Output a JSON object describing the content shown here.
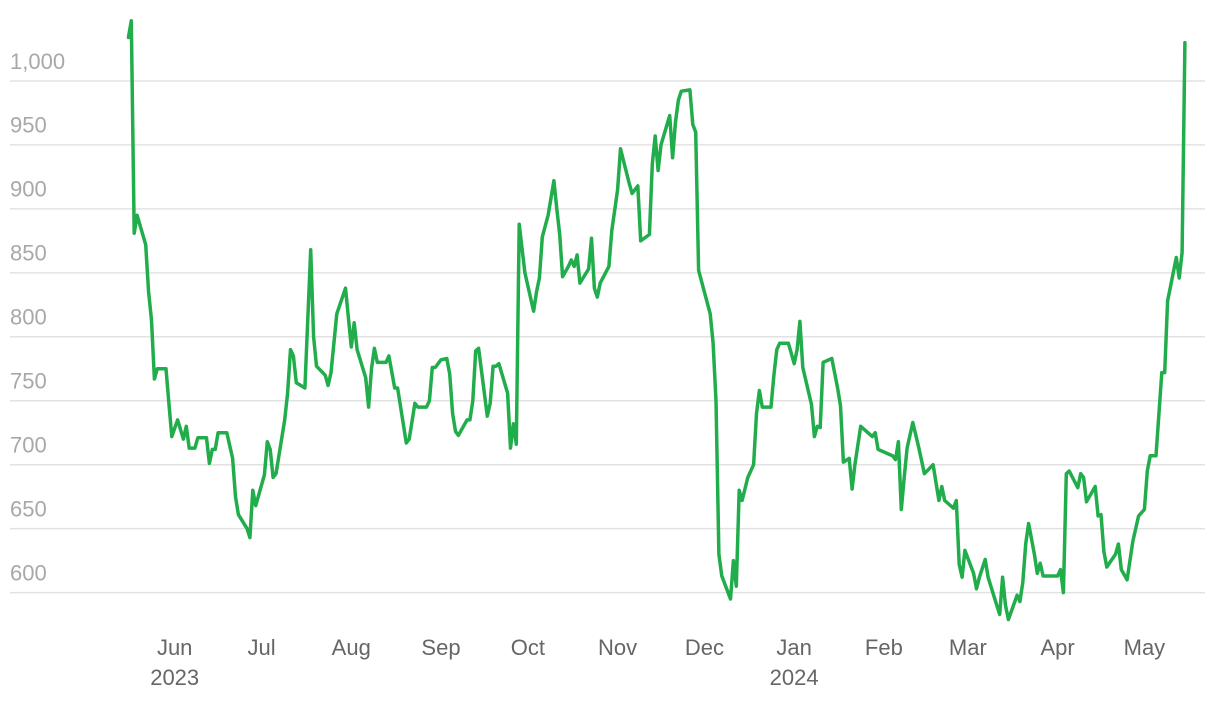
{
  "chart_data": {
    "type": "line",
    "x": [
      "2023-05-16",
      "2023-05-17",
      "2023-05-18",
      "2023-05-19",
      "2023-05-22",
      "2023-05-23",
      "2023-05-24",
      "2023-05-25",
      "2023-05-26",
      "2023-05-29",
      "2023-05-30",
      "2023-05-31",
      "2023-06-02",
      "2023-06-04",
      "2023-06-05",
      "2023-06-06",
      "2023-06-08",
      "2023-06-09",
      "2023-06-12",
      "2023-06-13",
      "2023-06-14",
      "2023-06-15",
      "2023-06-16",
      "2023-06-19",
      "2023-06-21",
      "2023-06-22",
      "2023-06-23",
      "2023-06-26",
      "2023-06-27",
      "2023-06-28",
      "2023-06-29",
      "2023-07-02",
      "2023-07-03",
      "2023-07-04",
      "2023-07-05",
      "2023-07-06",
      "2023-07-09",
      "2023-07-10",
      "2023-07-11",
      "2023-07-12",
      "2023-07-13",
      "2023-07-16",
      "2023-07-18",
      "2023-07-19",
      "2023-07-20",
      "2023-07-23",
      "2023-07-24",
      "2023-07-25",
      "2023-07-27",
      "2023-07-30",
      "2023-08-01",
      "2023-08-02",
      "2023-08-03",
      "2023-08-06",
      "2023-08-07",
      "2023-08-08",
      "2023-08-09",
      "2023-08-10",
      "2023-08-13",
      "2023-08-14",
      "2023-08-16",
      "2023-08-17",
      "2023-08-20",
      "2023-08-21",
      "2023-08-23",
      "2023-08-24",
      "2023-08-27",
      "2023-08-28",
      "2023-08-29",
      "2023-08-30",
      "2023-09-01",
      "2023-09-03",
      "2023-09-04",
      "2023-09-05",
      "2023-09-06",
      "2023-09-07",
      "2023-09-10",
      "2023-09-11",
      "2023-09-12",
      "2023-09-13",
      "2023-09-14",
      "2023-09-17",
      "2023-09-18",
      "2023-09-19",
      "2023-09-20",
      "2023-09-21",
      "2023-09-24",
      "2023-09-25",
      "2023-09-26",
      "2023-09-27",
      "2023-09-28",
      "2023-09-30",
      "2023-10-03",
      "2023-10-04",
      "2023-10-05",
      "2023-10-06",
      "2023-10-08",
      "2023-10-10",
      "2023-10-11",
      "2023-10-12",
      "2023-10-13",
      "2023-10-15",
      "2023-10-16",
      "2023-10-17",
      "2023-10-18",
      "2023-10-19",
      "2023-10-22",
      "2023-10-23",
      "2023-10-24",
      "2023-10-25",
      "2023-10-26",
      "2023-10-29",
      "2023-10-30",
      "2023-11-01",
      "2023-11-02",
      "2023-11-05",
      "2023-11-06",
      "2023-11-08",
      "2023-11-09",
      "2023-11-12",
      "2023-11-13",
      "2023-11-14",
      "2023-11-15",
      "2023-11-16",
      "2023-11-19",
      "2023-11-20",
      "2023-11-21",
      "2023-11-22",
      "2023-11-23",
      "2023-11-26",
      "2023-11-27",
      "2023-11-28",
      "2023-11-29",
      "2023-12-03",
      "2023-12-04",
      "2023-12-05",
      "2023-12-06",
      "2023-12-07",
      "2023-12-10",
      "2023-12-11",
      "2023-12-12",
      "2023-12-13",
      "2023-12-14",
      "2023-12-16",
      "2023-12-18",
      "2023-12-19",
      "2023-12-20",
      "2023-12-21",
      "2023-12-24",
      "2023-12-25",
      "2023-12-26",
      "2023-12-27",
      "2023-12-30",
      "2024-01-01",
      "2024-01-02",
      "2024-01-03",
      "2024-01-04",
      "2024-01-07",
      "2024-01-08",
      "2024-01-09",
      "2024-01-10",
      "2024-01-11",
      "2024-01-14",
      "2024-01-16",
      "2024-01-17",
      "2024-01-18",
      "2024-01-20",
      "2024-01-21",
      "2024-01-22",
      "2024-01-24",
      "2024-01-28",
      "2024-01-29",
      "2024-01-30",
      "2024-02-04",
      "2024-02-05",
      "2024-02-06",
      "2024-02-07",
      "2024-02-08",
      "2024-02-09",
      "2024-02-11",
      "2024-02-13",
      "2024-02-15",
      "2024-02-18",
      "2024-02-20",
      "2024-02-21",
      "2024-02-22",
      "2024-02-25",
      "2024-02-26",
      "2024-02-27",
      "2024-02-28",
      "2024-02-29",
      "2024-03-03",
      "2024-03-04",
      "2024-03-05",
      "2024-03-07",
      "2024-03-08",
      "2024-03-11",
      "2024-03-12",
      "2024-03-13",
      "2024-03-14",
      "2024-03-15",
      "2024-03-18",
      "2024-03-19",
      "2024-03-20",
      "2024-03-21",
      "2024-03-22",
      "2024-03-24",
      "2024-03-25",
      "2024-03-26",
      "2024-03-27",
      "2024-03-31",
      "2024-04-01",
      "2024-04-02",
      "2024-04-03",
      "2024-04-04",
      "2024-04-05",
      "2024-04-08",
      "2024-04-09",
      "2024-04-10",
      "2024-04-11",
      "2024-04-14",
      "2024-04-15",
      "2024-04-16",
      "2024-04-17",
      "2024-04-18",
      "2024-04-21",
      "2024-04-22",
      "2024-04-23",
      "2024-04-25",
      "2024-04-27",
      "2024-04-29",
      "2024-05-01",
      "2024-05-02",
      "2024-05-03",
      "2024-05-05",
      "2024-05-07",
      "2024-05-08",
      "2024-05-09",
      "2024-05-12",
      "2024-05-13",
      "2024-05-14",
      "2024-05-15"
    ],
    "series": [
      {
        "color": "#21ad4b",
        "values": [
          1034,
          1047,
          881,
          895,
          872,
          835,
          813,
          767,
          775,
          775,
          748,
          722,
          735,
          720,
          730,
          713,
          713,
          721,
          721,
          701,
          712,
          712,
          725,
          725,
          705,
          675,
          661,
          650,
          643,
          680,
          668,
          692,
          718,
          712,
          690,
          693,
          735,
          756,
          790,
          785,
          764,
          760,
          868,
          800,
          777,
          770,
          762,
          772,
          818,
          838,
          792,
          811,
          790,
          768,
          745,
          775,
          791,
          780,
          780,
          785,
          760,
          760,
          717,
          720,
          748,
          745,
          745,
          750,
          776,
          776,
          782,
          783,
          771,
          740,
          726,
          723,
          735,
          735,
          750,
          789,
          791,
          738,
          748,
          777,
          777,
          779,
          756,
          713,
          732,
          716,
          888,
          850,
          820,
          835,
          846,
          878,
          895,
          922,
          900,
          880,
          847,
          855,
          860,
          855,
          864,
          842,
          853,
          877,
          838,
          831,
          842,
          855,
          883,
          915,
          947,
          920,
          912,
          918,
          875,
          880,
          935,
          957,
          930,
          950,
          973,
          940,
          968,
          985,
          992,
          993,
          966,
          960,
          852,
          818,
          795,
          750,
          630,
          613,
          595,
          625,
          605,
          680,
          672,
          690,
          700,
          740,
          758,
          745,
          745,
          770,
          790,
          795,
          795,
          779,
          790,
          812,
          776,
          747,
          722,
          730,
          729,
          780,
          783,
          760,
          746,
          702,
          705,
          681,
          700,
          730,
          722,
          725,
          712,
          707,
          704,
          718,
          665,
          690,
          713,
          733,
          714,
          693,
          700,
          672,
          683,
          672,
          666,
          672,
          622,
          612,
          633,
          615,
          603,
          612,
          626,
          612,
          590,
          583,
          612,
          590,
          579,
          598,
          593,
          608,
          638,
          654,
          630,
          615,
          623,
          613,
          613,
          613,
          618,
          600,
          693,
          695,
          682,
          693,
          690,
          671,
          683,
          660,
          661,
          632,
          620,
          630,
          638,
          618,
          610,
          640,
          660,
          665,
          695,
          707,
          707,
          772,
          772,
          828,
          862,
          846,
          866,
          1030
        ]
      }
    ],
    "xlim": [
      "2023-05-10",
      "2024-05-24"
    ],
    "xticks": [
      {
        "value": "2023-06-01",
        "label": "Jun",
        "year": "2023"
      },
      {
        "value": "2023-07-01",
        "label": "Jul"
      },
      {
        "value": "2023-08-01",
        "label": "Aug"
      },
      {
        "value": "2023-09-01",
        "label": "Sep"
      },
      {
        "value": "2023-10-01",
        "label": "Oct"
      },
      {
        "value": "2023-11-01",
        "label": "Nov"
      },
      {
        "value": "2023-12-01",
        "label": "Dec"
      },
      {
        "value": "2024-01-01",
        "label": "Jan",
        "year": "2024"
      },
      {
        "value": "2024-02-01",
        "label": "Feb"
      },
      {
        "value": "2024-03-01",
        "label": "Mar"
      },
      {
        "value": "2024-04-01",
        "label": "Apr"
      },
      {
        "value": "2024-05-01",
        "label": "May"
      }
    ],
    "ylim": [
      570,
      1050
    ],
    "yticks": [
      600,
      650,
      700,
      750,
      800,
      850,
      900,
      950,
      {
        "value": 1000,
        "label": "1,000"
      }
    ],
    "grid": true
  }
}
